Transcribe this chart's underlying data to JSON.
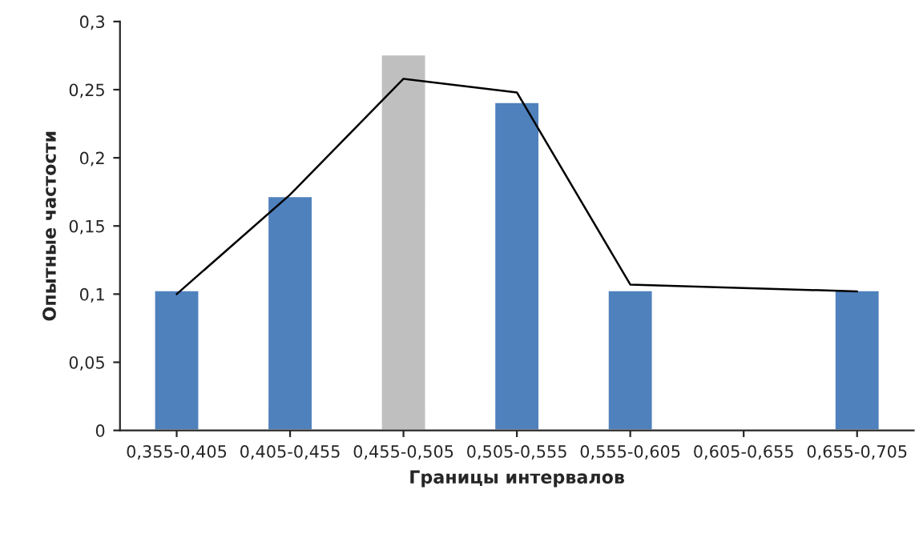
{
  "chart_data": {
    "type": "bar",
    "xlabel": "Границы интервалов",
    "ylabel": "Опытные частости",
    "categories": [
      "0,355-0,405",
      "0,405-0,455",
      "0,455-0,505",
      "0,505-0,555",
      "0,555-0,605",
      "0,605-0,655",
      "0,655-0,705"
    ],
    "series": [
      {
        "values": [
          0.103,
          0.172,
          0.276,
          0.241,
          0.103,
          null,
          0.103
        ],
        "colors": [
          "#4f81bd",
          "#4f81bd",
          "#bfbfbf",
          "#4f81bd",
          "#4f81bd",
          "#4f81bd",
          "#4f81bd"
        ]
      },
      {
        "type": "line",
        "color": "#000000",
        "values": [
          0.1,
          0.173,
          0.258,
          0.248,
          0.107,
          null,
          0.102
        ]
      }
    ],
    "ylim": [
      0,
      0.3
    ],
    "yticks": [
      0,
      {
        "value": 0.05,
        "label": "0,05"
      },
      {
        "value": 0.1,
        "label": "0,1"
      },
      {
        "value": 0.15,
        "label": "0,15"
      },
      {
        "value": 0.2,
        "label": "0,2"
      },
      {
        "value": 0.25,
        "label": "0,25"
      },
      {
        "value": 0.3,
        "label": "0,3"
      }
    ],
    "grid": false,
    "legend": false
  }
}
